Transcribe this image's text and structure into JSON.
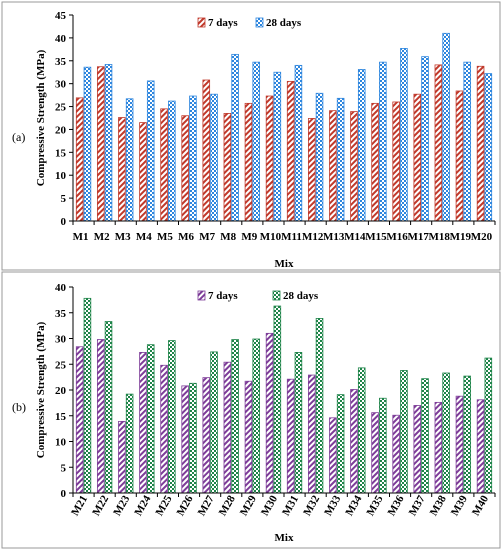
{
  "chart_data": [
    {
      "type": "bar",
      "panel_label": "(a)",
      "categories": [
        "M1",
        "M2",
        "M3",
        "M4",
        "M5",
        "M6",
        "M7",
        "M8",
        "M9",
        "M10",
        "M11",
        "M12",
        "M13",
        "M14",
        "M15",
        "M16",
        "M17",
        "M18",
        "M19",
        "M20"
      ],
      "series": [
        {
          "name": "7 days",
          "color": "#c0392b",
          "pattern": "diagonal-lines-red",
          "values": [
            26.9,
            33.7,
            22.6,
            21.5,
            24.5,
            23.0,
            30.8,
            23.5,
            25.7,
            27.3,
            30.5,
            22.4,
            24.1,
            23.9,
            25.7,
            26.0,
            27.7,
            34.1,
            28.4,
            33.8
          ]
        },
        {
          "name": "28 days",
          "color": "#2e86de",
          "pattern": "checkered-blue",
          "values": [
            33.6,
            34.2,
            26.7,
            30.6,
            26.2,
            27.3,
            27.7,
            36.4,
            34.7,
            32.5,
            34.0,
            27.9,
            26.8,
            33.1,
            34.7,
            37.7,
            35.9,
            41.0,
            34.7,
            32.2
          ]
        }
      ],
      "xlabel": "Mix",
      "ylabel": "Compressive Strength (MPa)",
      "ylim": [
        0,
        45
      ],
      "yticks": [
        0,
        5,
        10,
        15,
        20,
        25,
        30,
        35,
        40,
        45
      ],
      "grid": false,
      "legend_position": "top-center"
    },
    {
      "type": "bar",
      "panel_label": "(b)",
      "categories": [
        "M21",
        "M22",
        "M23",
        "M24",
        "M25",
        "M26",
        "M27",
        "M28",
        "M29",
        "M30",
        "M31",
        "M32",
        "M33",
        "M34",
        "M35",
        "M36",
        "M37",
        "M38",
        "M39",
        "M40"
      ],
      "series": [
        {
          "name": "7 days",
          "color": "#7d3c98",
          "pattern": "diagonal-lines-purple",
          "values": [
            28.4,
            29.8,
            13.9,
            27.3,
            24.8,
            20.8,
            22.4,
            25.4,
            21.7,
            31.0,
            22.1,
            22.9,
            14.6,
            20.1,
            15.6,
            15.1,
            17.0,
            17.6,
            18.8,
            18.1
          ]
        },
        {
          "name": "28 days",
          "color": "#1e8449",
          "pattern": "checkered-green",
          "values": [
            37.8,
            33.3,
            19.2,
            28.8,
            29.6,
            21.3,
            27.4,
            29.8,
            29.9,
            36.3,
            27.3,
            33.9,
            19.1,
            24.3,
            18.4,
            23.8,
            22.2,
            23.3,
            22.7,
            26.2
          ]
        }
      ],
      "xlabel": "Mix",
      "ylabel": "Compressive Strength (MPa)",
      "ylim": [
        0,
        40
      ],
      "yticks": [
        0,
        5,
        10,
        15,
        20,
        25,
        30,
        35,
        40
      ],
      "grid": false,
      "legend_position": "top-center"
    }
  ]
}
